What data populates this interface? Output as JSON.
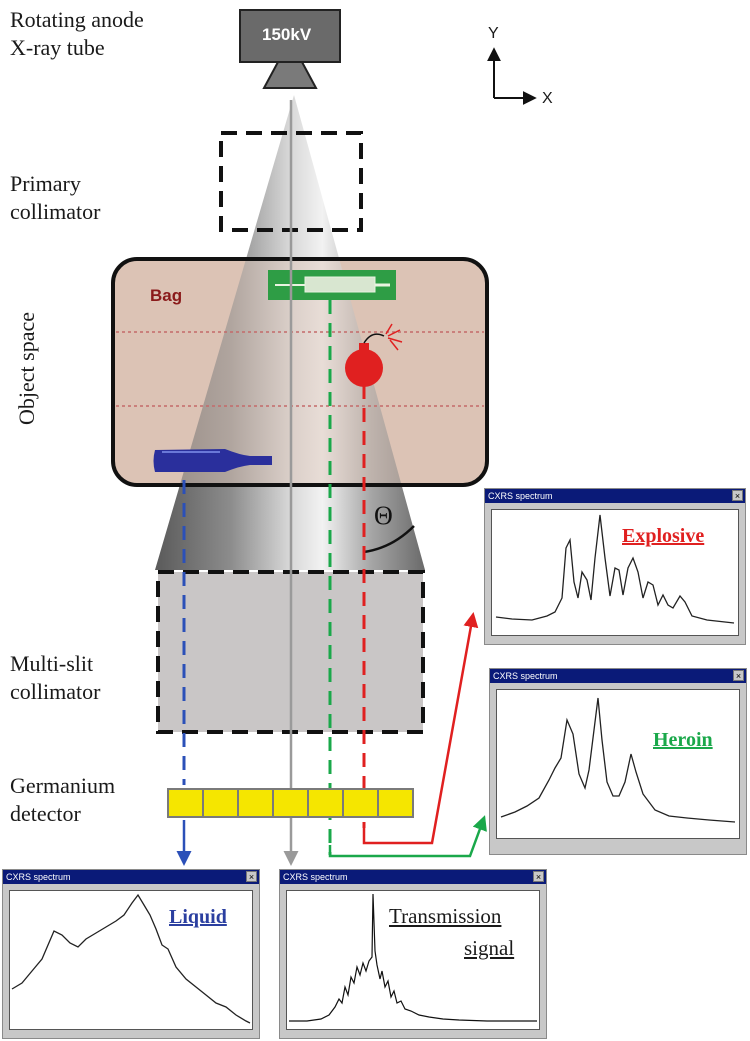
{
  "source": {
    "line1": "Rotating anode",
    "line2": "X-ray tube",
    "voltage": "150kV"
  },
  "axes": {
    "y": "Y",
    "x": "X"
  },
  "labels": {
    "primary_line1": "Primary",
    "primary_line2": "collimator",
    "object_space": "Object space",
    "multislit_line1": "Multi-slit",
    "multislit_line2": "collimator",
    "detector_line1": "Germanium",
    "detector_line2": "detector",
    "bag": "Bag",
    "theta": "Θ"
  },
  "spectra": {
    "explosive": {
      "window_title": "CXRS spectrum",
      "label": "Explosive",
      "color": "#e02020"
    },
    "heroin": {
      "window_title": "CXRS spectrum",
      "label": "Heroin",
      "color": "#1aa84a"
    },
    "liquid": {
      "window_title": "CXRS spectrum",
      "label": "Liquid",
      "color": "#2b3fa0"
    },
    "transmission": {
      "window_title": "CXRS spectrum",
      "label_line1": "Transmission",
      "label_line2": "signal",
      "color": "#1a1a1a"
    }
  },
  "colors": {
    "liquid": "#2b50b8",
    "transmission": "#9a9a9a",
    "heroin": "#1aa84a",
    "explosive": "#e02020",
    "bag_fill": "#dcc3b5",
    "detector": "#f5e600",
    "collimator_fill": "#c9c6c6",
    "titlebar": "#0a1a78"
  }
}
